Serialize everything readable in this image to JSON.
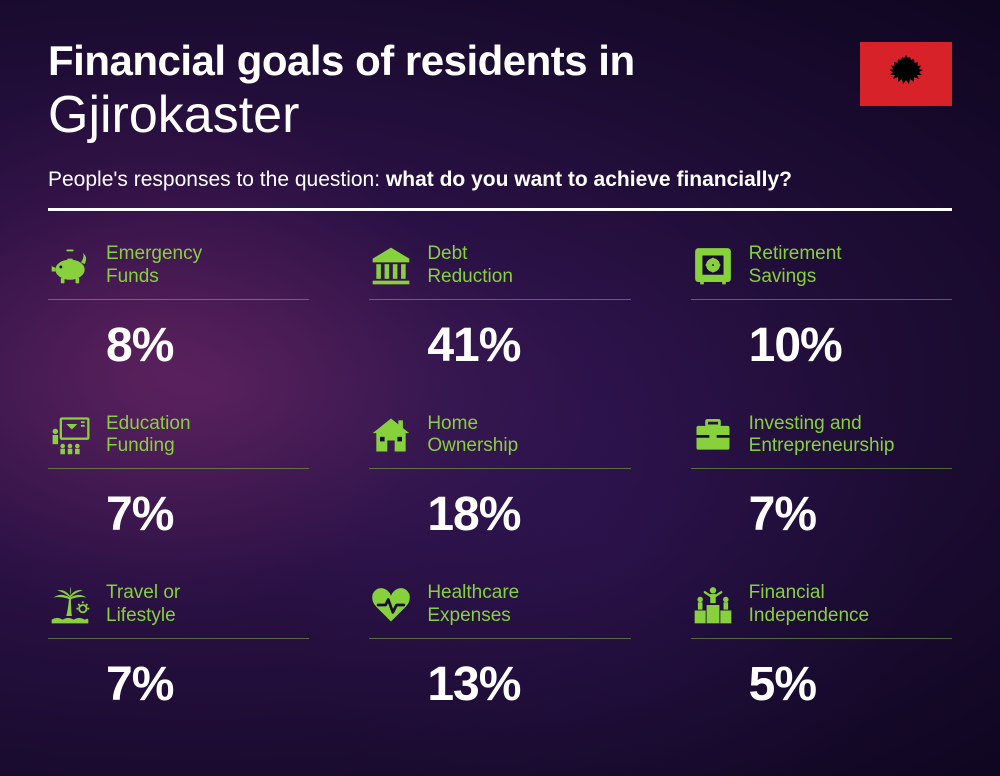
{
  "title_line1": "Financial goals of residents in",
  "title_line2": "Gjirokaster",
  "subtitle_prefix": "People's responses to the question: ",
  "subtitle_bold": "what do you want to achieve financially?",
  "accent_color": "#87d13c",
  "flag_bg": "#d8222a",
  "items": [
    {
      "label": "Emergency Funds",
      "value": "8%",
      "icon": "piggy-bank-icon"
    },
    {
      "label": "Debt Reduction",
      "value": "41%",
      "icon": "bank-icon"
    },
    {
      "label": "Retirement Savings",
      "value": "10%",
      "icon": "safe-icon"
    },
    {
      "label": "Education Funding",
      "value": "7%",
      "icon": "education-icon"
    },
    {
      "label": "Home Ownership",
      "value": "18%",
      "icon": "house-icon"
    },
    {
      "label": "Investing and Entrepreneurship",
      "value": "7%",
      "icon": "briefcase-icon"
    },
    {
      "label": "Travel or Lifestyle",
      "value": "7%",
      "icon": "palm-icon"
    },
    {
      "label": "Healthcare Expenses",
      "value": "13%",
      "icon": "heart-pulse-icon"
    },
    {
      "label": "Financial Independence",
      "value": "5%",
      "icon": "podium-icon"
    }
  ]
}
